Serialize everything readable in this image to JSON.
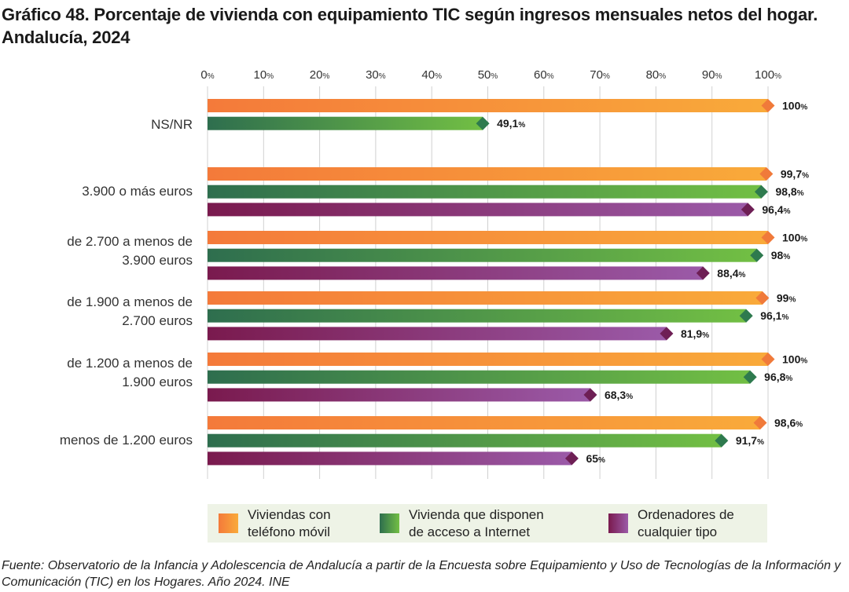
{
  "title": "Gráfico 48. Porcentaje de vivienda con equipamiento TIC según ingresos mensuales netos del hogar. Andalucía, 2024",
  "source": "Fuente: Observatorio de la Infancia y Adolescencia de Andalucía a partir de la Encuesta sobre Equipamiento y Uso de Tecnologías de la Información y Comunicación (TIC) en los Hogares. Año 2024. INE",
  "colors": {
    "orange_start": "#f47a3a",
    "orange_end": "#f9aa3a",
    "green_start": "#2e6e4e",
    "green_end": "#72bf44",
    "purple_start": "#7a1a4e",
    "purple_end": "#9b5aa8",
    "grid": "#d0d0d0",
    "legend_bg": "#eef3e6"
  },
  "chart_data": {
    "type": "bar",
    "orientation": "horizontal",
    "title": "Gráfico 48. Porcentaje de vivienda con equipamiento TIC según ingresos mensuales netos del hogar. Andalucía, 2024",
    "xlim": [
      0,
      100
    ],
    "ticks": [
      0,
      10,
      20,
      30,
      40,
      50,
      60,
      70,
      80,
      90,
      100
    ],
    "tick_unit": "%",
    "grid": true,
    "legend_position": "bottom",
    "categories": [
      "NS/NR",
      "3.900 o más euros",
      "de 2.700 a menos de 3.900 euros",
      "de 1.900 a menos de 2.700 euros",
      "de 1.200 a menos de 1.900 euros",
      "menos de 1.200 euros"
    ],
    "category_lines": [
      [
        "NS/NR"
      ],
      [
        "3.900 o más euros"
      ],
      [
        "de 2.700 a menos de",
        "3.900 euros"
      ],
      [
        "de 1.900 a menos de",
        "2.700 euros"
      ],
      [
        "de 1.200 a menos de",
        "1.900 euros"
      ],
      [
        "menos de 1.200 euros"
      ]
    ],
    "series": [
      {
        "name": "Viviendas con teléfono móvil",
        "legend_lines": [
          "Viviendas con",
          "teléfono móvil"
        ],
        "color": "orange",
        "values": [
          100,
          99.7,
          100,
          99,
          100,
          98.6
        ],
        "labels": [
          "100",
          "99,7",
          "100",
          "99",
          "100",
          "98,6"
        ]
      },
      {
        "name": "Vivienda que disponen de acceso a Internet",
        "legend_lines": [
          "Vivienda que disponen",
          "de acceso a Internet"
        ],
        "color": "green",
        "values": [
          49.1,
          98.8,
          98,
          96.1,
          96.8,
          91.7
        ],
        "labels": [
          "49,1",
          "98,8",
          "98",
          "96,1",
          "96,8",
          "91,7"
        ]
      },
      {
        "name": "Ordenadores de cualquier tipo",
        "legend_lines": [
          "Ordenadores de",
          "cualquier tipo"
        ],
        "color": "purple",
        "values": [
          null,
          96.4,
          88.4,
          81.9,
          68.3,
          65
        ],
        "labels": [
          null,
          "96,4",
          "88,4",
          "81,9",
          "68,3",
          "65"
        ]
      }
    ]
  }
}
